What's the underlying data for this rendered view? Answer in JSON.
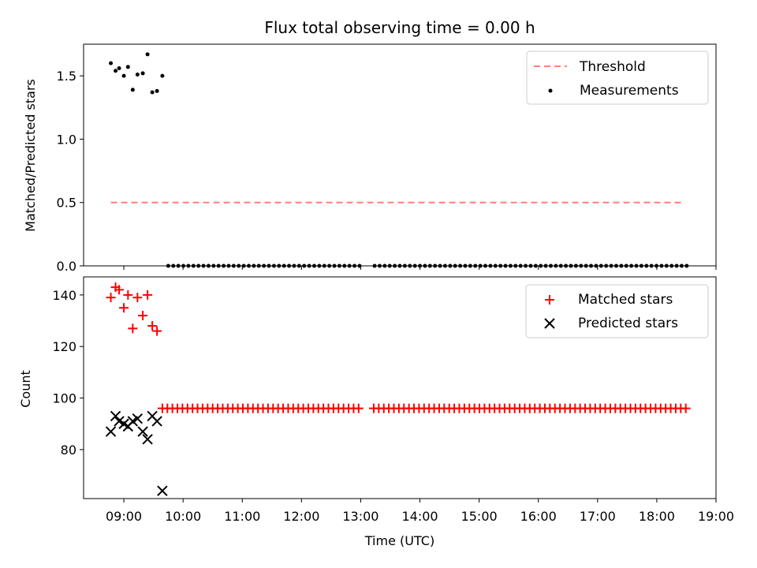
{
  "chart_data": [
    {
      "type": "scatter",
      "title": "Flux total observing time = 0.00 h",
      "xlabel": "",
      "ylabel": "Matched/Predicted stars",
      "xlim": [
        8.32,
        19.0
      ],
      "ylim": [
        0,
        1.75
      ],
      "yticks": [
        0.0,
        0.5,
        1.0,
        1.5
      ],
      "ytick_labels": [
        "0.0",
        "0.5",
        "1.0",
        "1.5"
      ],
      "grid": false,
      "legend": "top-right",
      "threshold": {
        "name": "Threshold",
        "value": 0.5,
        "x_range": [
          8.78,
          18.47
        ],
        "color": "#ff7f7f",
        "style": "dashed"
      },
      "series": [
        {
          "name": "Measurements",
          "color": "#000000",
          "marker": "dot",
          "x": [
            8.78,
            8.86,
            8.92,
            9.0,
            9.07,
            9.15,
            9.23,
            9.32,
            9.4,
            9.48,
            9.56,
            9.65
          ],
          "y": [
            1.6,
            1.54,
            1.56,
            1.5,
            1.57,
            1.39,
            1.51,
            1.52,
            1.67,
            1.37,
            1.38,
            1.5
          ],
          "zero_run": {
            "start": 9.75,
            "end": 18.52,
            "step": 0.085,
            "gap": [
              13.0,
              13.2
            ],
            "value": 0
          }
        }
      ]
    },
    {
      "type": "scatter",
      "title": "",
      "xlabel": "Time (UTC)",
      "ylabel": "Count",
      "xlim": [
        8.32,
        19.0
      ],
      "ylim": [
        61,
        147
      ],
      "yticks": [
        80,
        100,
        120,
        140
      ],
      "ytick_labels": [
        "80",
        "100",
        "120",
        "140"
      ],
      "xticks": [
        9,
        10,
        11,
        12,
        13,
        14,
        15,
        16,
        17,
        18,
        19
      ],
      "xtick_labels": [
        "09:00",
        "10:00",
        "11:00",
        "12:00",
        "13:00",
        "14:00",
        "15:00",
        "16:00",
        "17:00",
        "18:00",
        "19:00"
      ],
      "grid": false,
      "legend": "top-right",
      "series": [
        {
          "name": "Matched stars",
          "color": "#ff0000",
          "marker": "plus",
          "x": [
            8.78,
            8.86,
            8.92,
            9.0,
            9.07,
            9.15,
            9.23,
            9.32,
            9.4,
            9.48,
            9.56
          ],
          "y": [
            139,
            143,
            142,
            135,
            140,
            127,
            139,
            132,
            140,
            128,
            126
          ],
          "constant_run": {
            "start": 9.65,
            "end": 18.52,
            "step": 0.085,
            "gap": [
              13.0,
              13.2
            ],
            "value": 96
          }
        },
        {
          "name": "Predicted stars",
          "color": "#000000",
          "marker": "x",
          "x": [
            8.78,
            8.86,
            8.92,
            9.0,
            9.07,
            9.15,
            9.23,
            9.32,
            9.4,
            9.48,
            9.56,
            9.65
          ],
          "y": [
            87,
            93,
            91,
            90,
            89,
            91,
            92,
            87,
            84,
            93,
            91,
            64
          ]
        }
      ]
    }
  ]
}
